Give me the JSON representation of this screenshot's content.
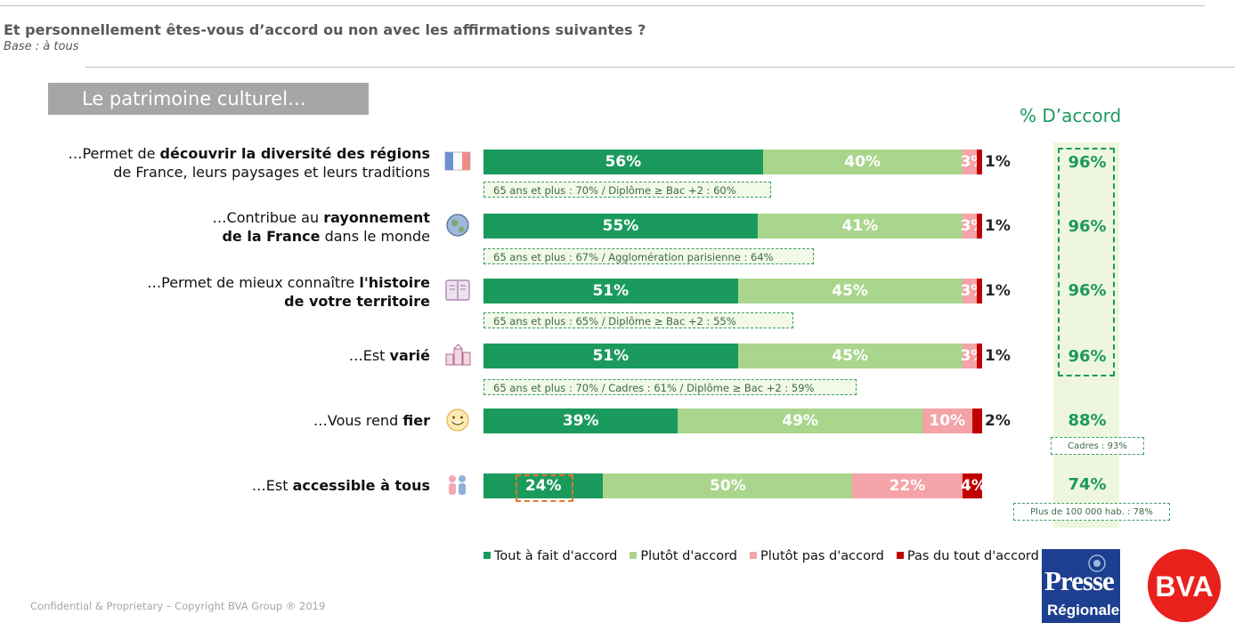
{
  "header": {
    "title": "Et personnellement êtes-vous d’accord ou non avec les affirmations suivantes ?",
    "base": "Base : à tous"
  },
  "section_title": "Le patrimoine culturel…",
  "agree_title": "% D’accord",
  "rows": [
    {
      "icon": "france-flag-icon",
      "label_html": "…Permet de <b>découvrir la diversité des régions</b><br>de France, leurs paysages et leurs traditions",
      "values": [
        56,
        40,
        3,
        1
      ],
      "labels": [
        "56%",
        "40%",
        "3%",
        "1%"
      ],
      "agree": "96%",
      "subnote": "65 ans et plus : 70% / Diplôme ≥ Bac +2 : 60%"
    },
    {
      "icon": "globe-icon",
      "label_html": "…Contribue au <b>rayonnement</b><br><b>de la France</b> dans le monde",
      "values": [
        55,
        41,
        3,
        1
      ],
      "labels": [
        "55%",
        "41%",
        "3%",
        "1%"
      ],
      "agree": "96%",
      "subnote": "65 ans et plus : 67% / Agglomération parisienne : 64%"
    },
    {
      "icon": "book-icon",
      "label_html": "…Permet de mieux connaître <b>l'histoire</b><br><b>de votre territoire</b>",
      "values": [
        51,
        45,
        3,
        1
      ],
      "labels": [
        "51%",
        "45%",
        "3%",
        "1%"
      ],
      "agree": "96%",
      "subnote": "65 ans et plus : 65% /  Diplôme ≥ Bac +2 : 55%"
    },
    {
      "icon": "buildings-icon",
      "label_html": "…Est <b>varié</b>",
      "values": [
        51,
        45,
        3,
        1
      ],
      "labels": [
        "51%",
        "45%",
        "3%",
        "1%"
      ],
      "agree": "96%",
      "subnote": "65 ans et plus : 70% / Cadres : 61% / Diplôme ≥ Bac +2 : 59%"
    },
    {
      "icon": "smiley-icon",
      "label_html": "…Vous rend <b>fier</b>",
      "values": [
        39,
        49,
        10,
        2
      ],
      "labels": [
        "39%",
        "49%",
        "10%",
        "2%"
      ],
      "agree": "88%",
      "agree_note": "Cadres : 93%"
    },
    {
      "icon": "people-icon",
      "label_html": "…Est <b>accessible à tous</b>",
      "values": [
        24,
        50,
        22,
        4
      ],
      "labels": [
        "24%",
        "50%",
        "22%",
        "4%"
      ],
      "agree": "74%",
      "agree_note": "Plus de 100 000 hab. : 78%"
    }
  ],
  "legend": [
    {
      "label": "Tout à fait d'accord",
      "color": "#1b9a5d"
    },
    {
      "label": "Plutôt d'accord",
      "color": "#a9d68c"
    },
    {
      "label": "Plutôt pas d'accord",
      "color": "#f4a3a8"
    },
    {
      "label": "Pas du tout d'accord",
      "color": "#c00000"
    }
  ],
  "chart_data": {
    "type": "bar",
    "orientation": "horizontal-stacked",
    "categories": [
      "…Permet de découvrir la diversité des régions de France, leurs paysages et leurs traditions",
      "…Contribue au rayonnement de la France dans le monde",
      "…Permet de mieux connaître l'histoire de votre territoire",
      "…Est varié",
      "…Vous rend fier",
      "…Est accessible à tous"
    ],
    "series": [
      {
        "name": "Tout à fait d'accord",
        "values": [
          56,
          55,
          51,
          51,
          39,
          24
        ]
      },
      {
        "name": "Plutôt d'accord",
        "values": [
          40,
          41,
          45,
          45,
          49,
          50
        ]
      },
      {
        "name": "Plutôt pas d'accord",
        "values": [
          3,
          3,
          3,
          3,
          10,
          22
        ]
      },
      {
        "name": "Pas du tout d'accord",
        "values": [
          1,
          1,
          1,
          1,
          2,
          4
        ]
      }
    ],
    "agree_total": [
      96,
      96,
      96,
      96,
      88,
      74
    ],
    "legend_position": "bottom"
  },
  "footer": "Confidential & Proprietary – Copyright BVA Group ®  2019",
  "logos": {
    "presse_line1": "Presse",
    "presse_line2": "Régionale",
    "bva": "BVA"
  }
}
